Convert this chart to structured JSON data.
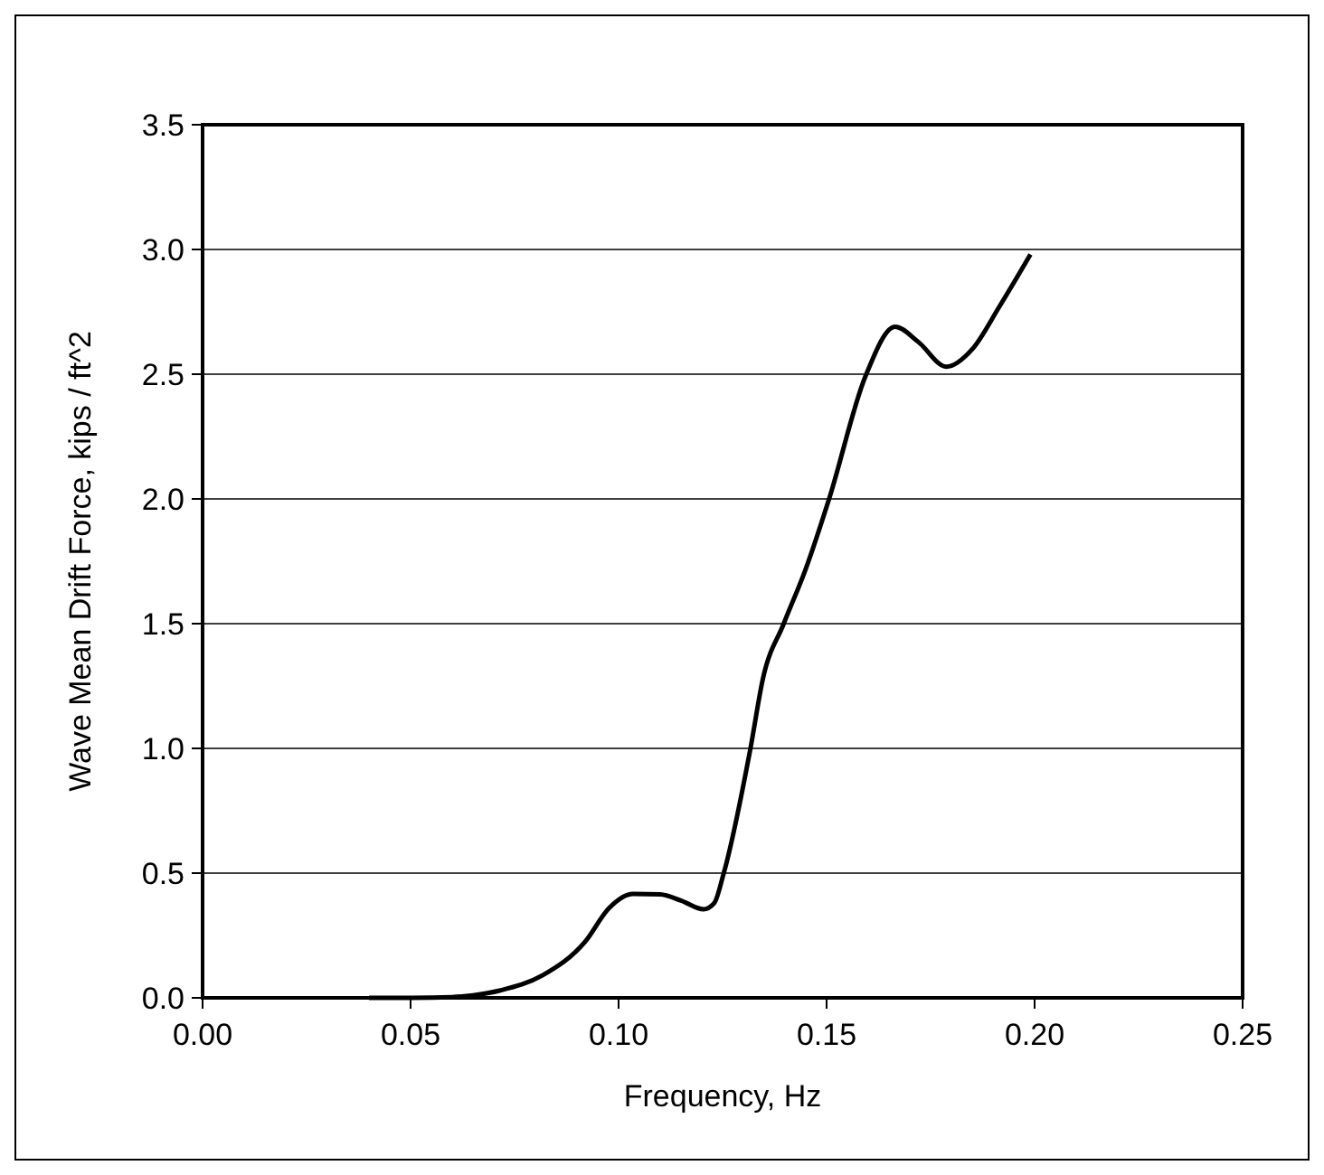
{
  "chart_data": {
    "type": "line",
    "xlabel": "Frequency, Hz",
    "ylabel": "Wave Mean Drift Force, kips / ft^2",
    "xlim": [
      0,
      0.25
    ],
    "xticks": [
      {
        "value": 0,
        "label": "0.00"
      },
      {
        "value": 0.05,
        "label": "0.05"
      },
      {
        "value": 0.1,
        "label": "0.10"
      },
      {
        "value": 0.15,
        "label": "0.15"
      },
      {
        "value": 0.2,
        "label": "0.20"
      },
      {
        "value": 0.25,
        "label": "0.25"
      }
    ],
    "ylim": [
      0,
      3.5
    ],
    "yticks": [
      {
        "value": 0,
        "label": "0.0"
      },
      {
        "value": 0.5,
        "label": "0.5"
      },
      {
        "value": 1,
        "label": "1.0"
      },
      {
        "value": 1.5,
        "label": "1.5"
      },
      {
        "value": 2,
        "label": "2.0"
      },
      {
        "value": 2.5,
        "label": "2.5"
      },
      {
        "value": 3,
        "label": "3.0"
      },
      {
        "value": 3.5,
        "label": "3.5"
      }
    ],
    "grid": "y",
    "marker": "none",
    "line_style": "solid",
    "series": [
      {
        "color": "#000000",
        "x": [
          0.04,
          0.05,
          0.06,
          0.065,
          0.0716,
          0.0817,
          0.092,
          0.0977,
          0.1035,
          0.11,
          0.115,
          0.1204,
          0.123,
          0.1252,
          0.1317,
          0.1347,
          0.1397,
          0.145,
          0.1506,
          0.1593,
          0.1665,
          0.172,
          0.1788,
          0.185,
          0.1915,
          0.199
        ],
        "values": [
          0,
          0,
          0.003,
          0.01,
          0.03,
          0.09,
          0.226,
          0.36,
          0.417,
          0.415,
          0.39,
          0.355,
          0.38,
          0.495,
          1.0,
          1.28,
          1.5,
          1.72,
          2.0,
          2.49,
          2.69,
          2.63,
          2.53,
          2.6,
          2.77,
          2.98
        ]
      }
    ]
  }
}
